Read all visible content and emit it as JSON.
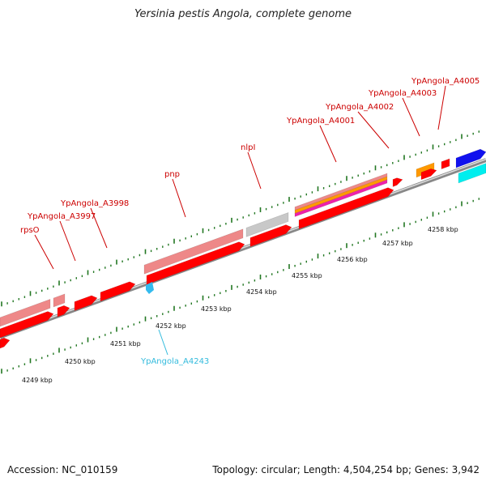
{
  "title": "Yersinia pestis Angola, complete genome",
  "footer": {
    "accession": "Accession: NC_010159",
    "summary": "Topology: circular; Length: 4,504,254 bp; Genes: 3,942"
  },
  "colors": {
    "red": "#ff0000",
    "pink": "#ee8888",
    "gray": "#c8c8c8",
    "orange": "#ff9900",
    "magenta": "#ee22aa",
    "blue": "#1111ee",
    "cyan": "#00eeee",
    "lightblue": "#33bbee",
    "tick_green": "#227722",
    "label_red": "#cc0000",
    "label_cyan": "#33bbdd"
  },
  "kbp_labels": [
    "4249 kbp",
    "4250 kbp",
    "4251 kbp",
    "4252 kbp",
    "4253 kbp",
    "4254 kbp",
    "4255 kbp",
    "4256 kbp",
    "4257 kbp",
    "4258 kbp"
  ],
  "gene_labels": [
    {
      "text": "rpsO",
      "color": "label_red"
    },
    {
      "text": "YpAngola_A3997",
      "color": "label_red"
    },
    {
      "text": "YpAngola_A3998",
      "color": "label_red"
    },
    {
      "text": "pnp",
      "color": "label_red"
    },
    {
      "text": "nlpI",
      "color": "label_red"
    },
    {
      "text": "YpAngola_A4001",
      "color": "label_red"
    },
    {
      "text": "YpAngola_A4002",
      "color": "label_red"
    },
    {
      "text": "YpAngola_A4003",
      "color": "label_red"
    },
    {
      "text": "YpAngola_A4005",
      "color": "label_red"
    },
    {
      "text": "YpAngola_A4243",
      "color": "label_cyan"
    }
  ]
}
